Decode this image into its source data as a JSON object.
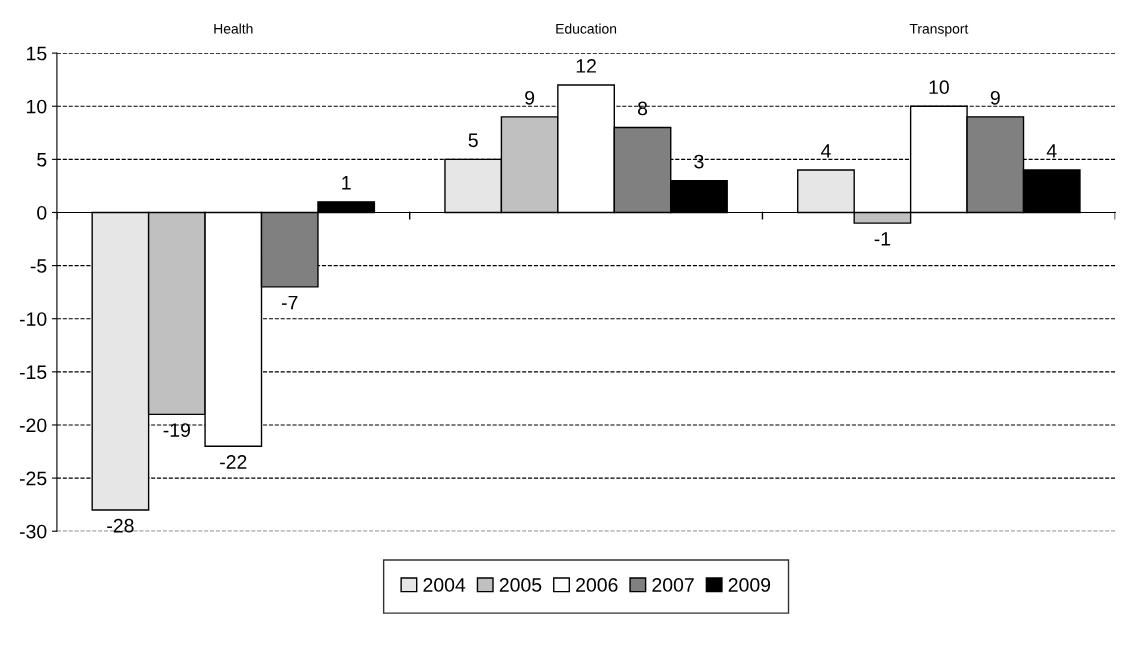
{
  "chart_data": {
    "type": "bar",
    "categories": [
      "Health",
      "Education",
      "Transport"
    ],
    "series": [
      {
        "name": "2004",
        "color": "#e6e6e6",
        "values": [
          -28,
          5,
          4
        ]
      },
      {
        "name": "2005",
        "color": "#c0c0c0",
        "values": [
          -19,
          9,
          -1
        ]
      },
      {
        "name": "2006",
        "color": "#ffffff",
        "values": [
          -22,
          12,
          10
        ]
      },
      {
        "name": "2007",
        "color": "#808080",
        "values": [
          -7,
          8,
          9
        ]
      },
      {
        "name": "2009",
        "color": "#000000",
        "values": [
          1,
          3,
          4
        ]
      }
    ],
    "ylim": [
      -30,
      15
    ],
    "yticks": [
      -30,
      -25,
      -20,
      -15,
      -10,
      -5,
      0,
      5,
      10,
      15
    ],
    "grid": "y",
    "legend": "bottom",
    "data_labels": true
  }
}
